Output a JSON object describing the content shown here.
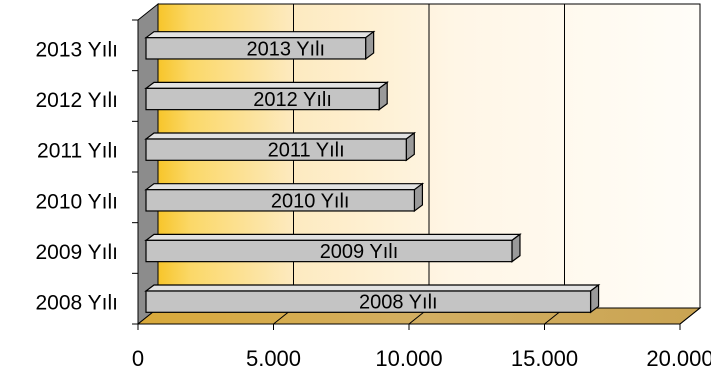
{
  "chart_data": {
    "type": "bar",
    "orientation": "horizontal",
    "style": "3d",
    "categories": [
      "2008 Yılı",
      "2009 Yılı",
      "2010 Yılı",
      "2011 Yılı",
      "2012 Yılı",
      "2013 Yılı"
    ],
    "values": [
      16700,
      13800,
      10200,
      9900,
      8900,
      8400
    ],
    "data_labels": [
      "2008 Yılı",
      "2009 Yılı",
      "2010 Yılı",
      "2011 Yılı",
      "2012 Yılı",
      "2013 Yılı"
    ],
    "xlim": [
      0,
      20000
    ],
    "xticks": [
      0,
      5000,
      10000,
      15000,
      20000
    ],
    "xtick_labels": [
      "0",
      "5.000",
      "10.000",
      "15.000",
      "20.000"
    ],
    "grid": true,
    "legend": false,
    "colors": {
      "bar_front": "#c4c4c4",
      "bar_top": "#e2e2e2",
      "bar_side": "#9a9a9a",
      "back_wall_gold": "#f7c52a",
      "back_wall_light": "#fffaf0",
      "floor": "#c8a24e",
      "left_wall": "#8c8c8c"
    }
  }
}
